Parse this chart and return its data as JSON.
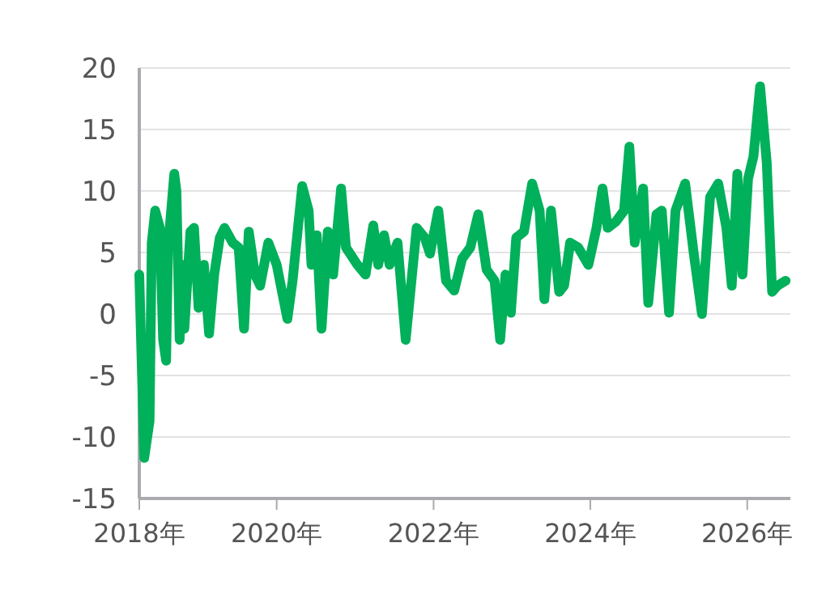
{
  "chart_data": {
    "type": "line",
    "x": [
      "2018-04-01",
      "2018-04-24",
      "2018-05-19",
      "2018-05-29",
      "2018-06-14",
      "2018-07-06",
      "2018-07-21",
      "2018-08-04",
      "2018-08-13",
      "2018-09-11",
      "2018-09-21",
      "2018-10-06",
      "2018-10-18",
      "2018-10-28",
      "2018-11-25",
      "2018-12-12",
      "2019-01-02",
      "2019-01-27",
      "2019-02-20",
      "2019-03-16",
      "2019-04-11",
      "2019-05-03",
      "2019-06-10",
      "2019-07-08",
      "2019-08-02",
      "2019-08-24",
      "2019-09-22",
      "2019-10-16",
      "2019-11-23",
      "2020-01-01",
      "2020-02-20",
      "2020-03-15",
      "2020-04-29",
      "2020-05-29",
      "2020-06-11",
      "2020-07-06",
      "2020-07-28",
      "2020-08-26",
      "2020-09-20",
      "2020-10-27",
      "2020-11-19",
      "2021-01-11",
      "2021-02-18",
      "2021-03-26",
      "2021-04-18",
      "2021-05-15",
      "2021-06-10",
      "2021-07-17",
      "2021-08-24",
      "2021-10-14",
      "2021-11-21",
      "2021-12-15",
      "2022-01-23",
      "2022-02-28",
      "2022-04-07",
      "2022-05-14",
      "2022-06-21",
      "2022-07-28",
      "2022-09-05",
      "2022-10-12",
      "2022-11-07",
      "2022-12-02",
      "2022-12-27",
      "2023-01-21",
      "2023-02-26",
      "2023-04-05",
      "2023-05-10",
      "2023-06-01",
      "2023-07-02",
      "2023-08-09",
      "2023-09-01",
      "2023-09-29",
      "2023-11-06",
      "2023-12-23",
      "2024-01-30",
      "2024-02-27",
      "2024-03-22",
      "2024-04-29",
      "2024-06-06",
      "2024-07-01",
      "2024-07-26",
      "2024-09-03",
      "2024-09-27",
      "2024-11-04",
      "2024-11-29",
      "2025-01-02",
      "2025-02-01",
      "2025-03-18",
      "2025-04-27",
      "2025-06-04",
      "2025-07-12",
      "2025-08-19",
      "2025-09-26",
      "2025-10-21",
      "2025-11-16",
      "2025-12-10",
      "2026-01-05",
      "2026-01-30",
      "2026-03-02",
      "2026-04-02",
      "2026-04-27",
      "2026-05-22",
      "2026-06-29"
    ],
    "series": [
      {
        "color": "#00b05a",
        "values": [
          3.2,
          -11.7,
          -8.7,
          5.8,
          8.4,
          7,
          -2.1,
          -3.8,
          5.4,
          11.4,
          10,
          -2.1,
          4,
          -1.2,
          6.7,
          7,
          0.5,
          4,
          -1.6,
          3.2,
          6.2,
          7,
          5.8,
          5.4,
          -1.2,
          6.7,
          3.2,
          2.3,
          5.8,
          4,
          -0.4,
          2.7,
          10.4,
          8.4,
          4,
          6.4,
          -1.2,
          6.7,
          3.2,
          10.2,
          5.4,
          4,
          3.2,
          7.2,
          4,
          6.4,
          4,
          5.8,
          -2.1,
          7,
          6.2,
          4.9,
          8.4,
          2.7,
          1.9,
          4.5,
          5.4,
          8.1,
          3.6,
          2.7,
          -2.1,
          3.2,
          0.1,
          6.2,
          6.7,
          10.6,
          8.4,
          1.2,
          8.4,
          1.8,
          2.3,
          5.8,
          5.4,
          4,
          7,
          10.2,
          7,
          7.5,
          8.4,
          13.6,
          5.8,
          10.2,
          0.9,
          8.1,
          8.4,
          0.1,
          8.4,
          10.6,
          4.9,
          0,
          9.5,
          10.6,
          7,
          2.3,
          11.4,
          3.2,
          11,
          12.8,
          18.5,
          12.3,
          1.8,
          2.3,
          2.7
        ]
      }
    ],
    "xlim": [
      "2018-04-01",
      "2026-07-21"
    ],
    "xticks": [
      {
        "value": "2018-04-01",
        "label": "2018年"
      },
      {
        "value": "2020-01-01",
        "label": "2020年"
      },
      {
        "value": "2022-01-01",
        "label": "2022年"
      },
      {
        "value": "2024-01-01",
        "label": "2024年"
      },
      {
        "value": "2026-01-01",
        "label": "2026年"
      }
    ],
    "ylim": [
      -15,
      20
    ],
    "yticks": [
      -15,
      -10,
      -5,
      0,
      5,
      10,
      15,
      20
    ],
    "grid": "y",
    "marker": "none",
    "line_style": "solid"
  }
}
